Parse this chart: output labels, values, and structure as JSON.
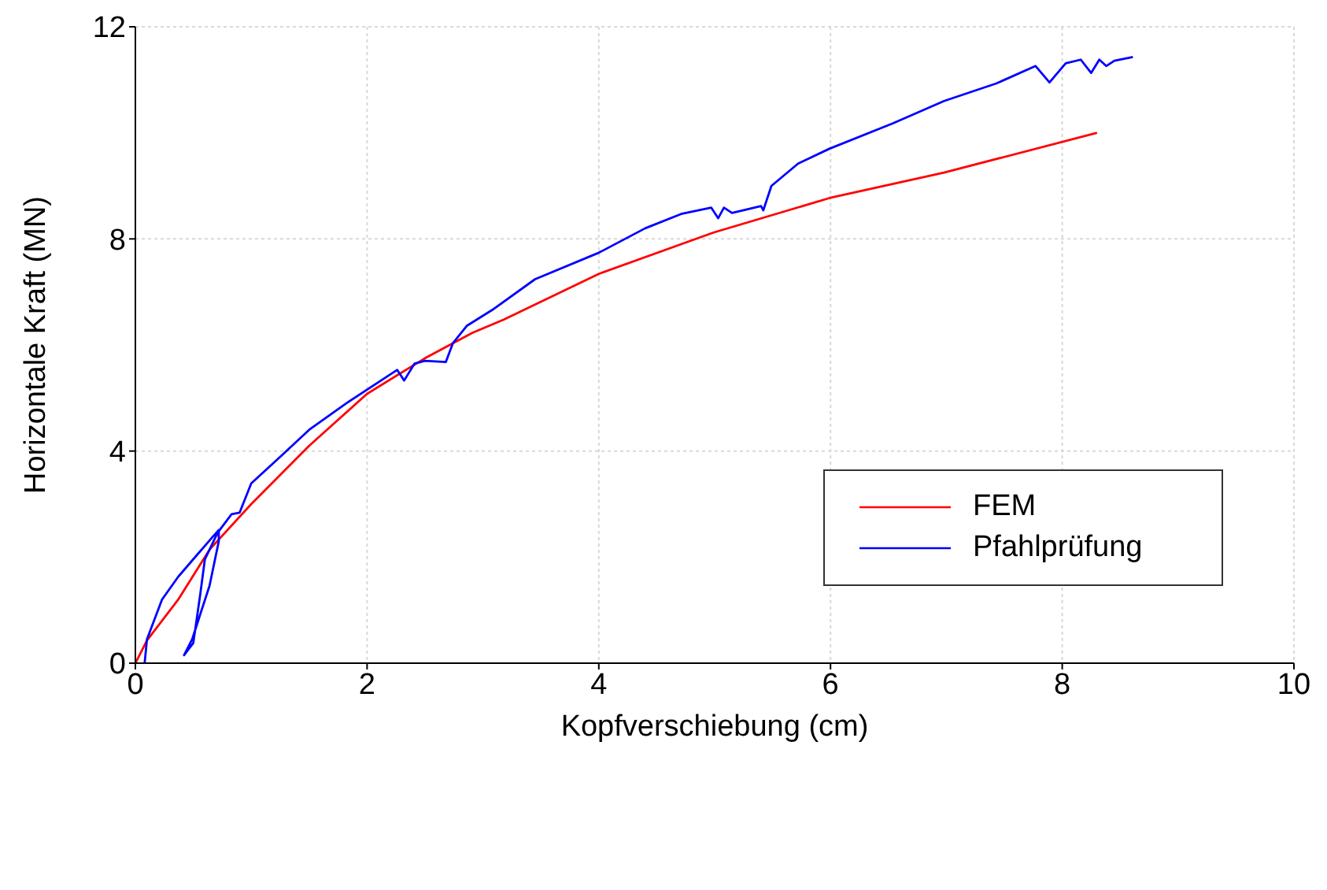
{
  "chart_data": {
    "type": "line",
    "xlabel": "Kopfverschiebung (cm)",
    "ylabel": "Horizontale Kraft (MN)",
    "xlim": [
      0,
      10
    ],
    "xticks": [
      0,
      2,
      4,
      6,
      8,
      10
    ],
    "ylim": [
      0,
      12
    ],
    "yticks": [
      0,
      4,
      8,
      12
    ],
    "grid": true,
    "legend": "right",
    "marker": "none",
    "line_style": "solid",
    "series": [
      {
        "name": "FEM",
        "color": "#ff0000",
        "x": [
          0,
          0.1,
          0.37,
          0.64,
          1.0,
          1.5,
          2.0,
          2.5,
          2.91,
          3.18,
          4.0,
          4.99,
          5.99,
          6.98,
          8.3
        ],
        "values": [
          0,
          0.43,
          1.2,
          2.14,
          3.0,
          4.1,
          5.08,
          5.75,
          6.23,
          6.48,
          7.34,
          8.12,
          8.77,
          9.25,
          10.0
        ]
      },
      {
        "name": "Pfahlprüfung",
        "color": "#0000ff",
        "x": [
          0.08,
          0.1,
          0.23,
          0.37,
          0.5,
          0.67,
          0.72,
          0.72,
          0.64,
          0.49,
          0.42,
          0.5,
          0.56,
          0.6,
          0.71,
          0.83,
          0.9,
          1.0,
          1.25,
          1.5,
          1.82,
          2.26,
          2.32,
          2.41,
          2.5,
          2.68,
          2.74,
          2.86,
          3.08,
          3.45,
          4.0,
          4.4,
          4.71,
          4.97,
          5.03,
          5.08,
          5.15,
          5.4,
          5.42,
          5.49,
          5.72,
          5.99,
          6.54,
          6.98,
          7.43,
          7.77,
          7.89,
          8.03,
          8.16,
          8.25,
          8.32,
          8.38,
          8.45,
          8.61
        ],
        "values": [
          0,
          0.45,
          1.2,
          1.63,
          1.96,
          2.39,
          2.51,
          2.3,
          1.46,
          0.45,
          0.15,
          0.38,
          1.3,
          1.96,
          2.46,
          2.81,
          2.84,
          3.39,
          3.89,
          4.4,
          4.9,
          5.53,
          5.33,
          5.65,
          5.7,
          5.68,
          6.03,
          6.36,
          6.66,
          7.24,
          7.74,
          8.2,
          8.47,
          8.59,
          8.39,
          8.59,
          8.49,
          8.62,
          8.54,
          9.0,
          9.42,
          9.7,
          10.18,
          10.6,
          10.93,
          11.26,
          10.95,
          11.31,
          11.38,
          11.13,
          11.38,
          11.26,
          11.36,
          11.43
        ]
      }
    ]
  }
}
